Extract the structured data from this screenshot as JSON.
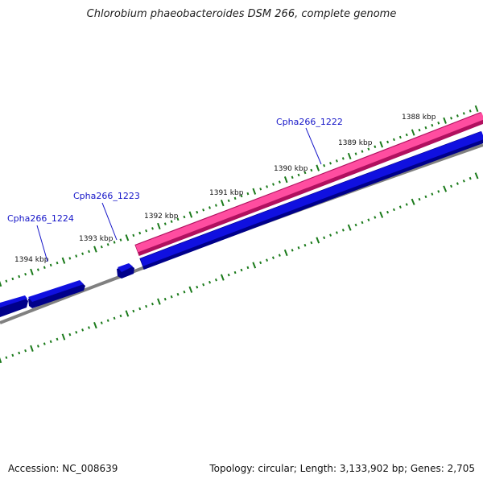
{
  "header": {
    "title": "Chlorobium phaeobacteroides DSM 266, complete genome"
  },
  "footer": {
    "accession": "Accession: NC_008639",
    "topology": "Topology: circular; Length: 3,133,902 bp; Genes: 2,705"
  },
  "map": {
    "kbp_labels": [
      "1388 kbp",
      "1389 kbp",
      "1390 kbp",
      "1391 kbp",
      "1392 kbp",
      "1393 kbp",
      "1394 kbp"
    ],
    "gene_labels": [
      "Cpha266_1222",
      "Cpha266_1223",
      "Cpha266_1224"
    ],
    "colors": {
      "ruler_ticks": "#1a7a1a",
      "pink_feature": "#ff4da0",
      "pink_feature_edge": "#b0105f",
      "blue_feature": "#1010e0",
      "blue_feature_edge": "#00008a",
      "backbone": "#808080",
      "gene_label": "#1414c8"
    }
  }
}
